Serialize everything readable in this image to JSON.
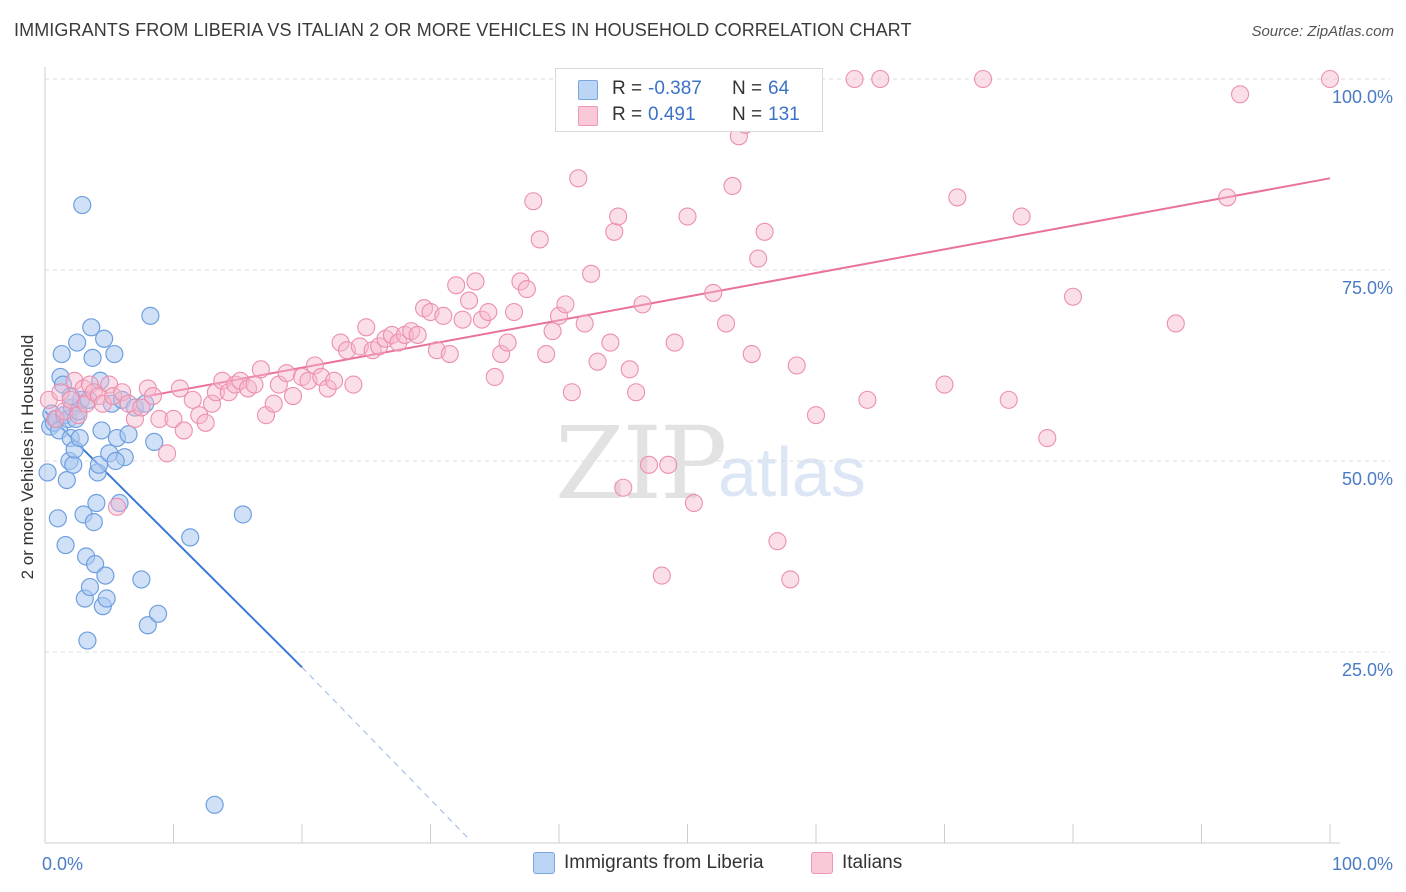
{
  "title": "IMMIGRANTS FROM LIBERIA VS ITALIAN 2 OR MORE VEHICLES IN HOUSEHOLD CORRELATION CHART",
  "source": "Source: ZipAtlas.com",
  "watermark": {
    "zip": "ZIP",
    "atlas": "atlas"
  },
  "legend": {
    "rows": [
      {
        "r_label": "R =",
        "r_value": "-0.387",
        "n_label": "N =",
        "n_value": "64",
        "color": "#a9c8f0"
      },
      {
        "r_label": "R =",
        "r_value": "0.491",
        "n_label": "N =",
        "n_value": "131",
        "color": "#f6b8cc"
      }
    ]
  },
  "bottom_legend": [
    {
      "label": "Immigrants from Liberia",
      "color": "#a9c8f0"
    },
    {
      "label": "Italians",
      "color": "#f6b8cc"
    }
  ],
  "chart_data": {
    "type": "scatter",
    "title": "IMMIGRANTS FROM LIBERIA VS ITALIAN 2 OR MORE VEHICLES IN HOUSEHOLD CORRELATION CHART",
    "xlabel": "",
    "ylabel": "2 or more Vehicles in Household",
    "xlim": [
      0,
      100
    ],
    "ylim": [
      0,
      100
    ],
    "x_tick_labels": [
      "0.0%",
      "100.0%"
    ],
    "y_tick_labels": [
      "25.0%",
      "50.0%",
      "75.0%",
      "100.0%"
    ],
    "y_ticks": [
      25,
      50,
      75,
      100
    ],
    "grid": true,
    "legend_position": "top-center",
    "colors": {
      "liberia": "#6f9fe0",
      "italians": "#ec8fae",
      "liberia_line": "#3a78d8",
      "italians_line": "#e8729a"
    },
    "series": [
      {
        "name": "Immigrants from Liberia",
        "trend": {
          "x": [
            0,
            20.0
          ],
          "y": [
            56.5,
            23.0
          ],
          "dashed_to": [
            33.0,
            0.5
          ]
        },
        "points": [
          [
            0.2,
            48.5
          ],
          [
            0.4,
            54.5
          ],
          [
            0.5,
            56.2
          ],
          [
            0.7,
            55.0
          ],
          [
            0.9,
            55.5
          ],
          [
            1.0,
            42.5
          ],
          [
            1.1,
            54.0
          ],
          [
            1.2,
            61.0
          ],
          [
            1.3,
            64.0
          ],
          [
            1.5,
            56.0
          ],
          [
            1.6,
            39.0
          ],
          [
            1.7,
            47.5
          ],
          [
            1.8,
            55.5
          ],
          [
            1.9,
            50.0
          ],
          [
            2.0,
            53.0
          ],
          [
            2.1,
            57.0
          ],
          [
            2.2,
            49.5
          ],
          [
            2.3,
            51.5
          ],
          [
            2.4,
            55.5
          ],
          [
            2.5,
            65.5
          ],
          [
            2.6,
            56.5
          ],
          [
            2.7,
            53.0
          ],
          [
            2.8,
            58.0
          ],
          [
            2.9,
            83.5
          ],
          [
            3.0,
            43.0
          ],
          [
            3.1,
            32.0
          ],
          [
            3.2,
            37.5
          ],
          [
            3.3,
            26.5
          ],
          [
            3.5,
            33.5
          ],
          [
            3.6,
            67.5
          ],
          [
            3.7,
            63.5
          ],
          [
            3.8,
            42.0
          ],
          [
            3.9,
            36.5
          ],
          [
            4.0,
            44.5
          ],
          [
            4.1,
            48.5
          ],
          [
            4.2,
            49.5
          ],
          [
            4.3,
            60.5
          ],
          [
            4.5,
            31.0
          ],
          [
            4.6,
            66.0
          ],
          [
            4.7,
            35.0
          ],
          [
            4.8,
            32.0
          ],
          [
            5.0,
            51.0
          ],
          [
            5.2,
            57.5
          ],
          [
            5.4,
            64.0
          ],
          [
            5.6,
            53.0
          ],
          [
            5.8,
            44.5
          ],
          [
            6.0,
            58.0
          ],
          [
            6.2,
            50.5
          ],
          [
            6.5,
            53.5
          ],
          [
            7.0,
            57.0
          ],
          [
            7.5,
            34.5
          ],
          [
            7.8,
            57.5
          ],
          [
            8.0,
            28.5
          ],
          [
            8.2,
            69.0
          ],
          [
            8.5,
            52.5
          ],
          [
            8.8,
            30.0
          ],
          [
            11.3,
            40.0
          ],
          [
            13.2,
            5.0
          ],
          [
            15.4,
            43.0
          ],
          [
            1.4,
            60.0
          ],
          [
            2.0,
            58.5
          ],
          [
            3.4,
            58.0
          ],
          [
            4.4,
            54.0
          ],
          [
            5.5,
            50.0
          ]
        ]
      },
      {
        "name": "Italians",
        "trend": {
          "x": [
            8.0,
            100.0
          ],
          "y": [
            58.5,
            87.0
          ]
        },
        "points": [
          [
            0.3,
            58.0
          ],
          [
            0.8,
            55.5
          ],
          [
            1.2,
            59.0
          ],
          [
            1.5,
            56.5
          ],
          [
            2.0,
            58.0
          ],
          [
            2.3,
            60.5
          ],
          [
            2.6,
            56.0
          ],
          [
            3.0,
            59.5
          ],
          [
            3.2,
            57.5
          ],
          [
            3.5,
            60.0
          ],
          [
            3.8,
            59.0
          ],
          [
            4.2,
            58.5
          ],
          [
            4.5,
            57.5
          ],
          [
            5.0,
            60.0
          ],
          [
            5.3,
            58.5
          ],
          [
            5.6,
            44.0
          ],
          [
            6.0,
            59.0
          ],
          [
            6.5,
            57.5
          ],
          [
            7.0,
            55.5
          ],
          [
            7.5,
            57.0
          ],
          [
            8.0,
            59.5
          ],
          [
            8.4,
            58.5
          ],
          [
            8.9,
            55.5
          ],
          [
            9.5,
            51.0
          ],
          [
            10.0,
            55.5
          ],
          [
            10.5,
            59.5
          ],
          [
            10.8,
            54.0
          ],
          [
            11.5,
            58.0
          ],
          [
            12.0,
            56.0
          ],
          [
            12.5,
            55.0
          ],
          [
            13.0,
            57.5
          ],
          [
            13.3,
            59.0
          ],
          [
            13.8,
            60.5
          ],
          [
            14.3,
            59.0
          ],
          [
            14.8,
            60.0
          ],
          [
            15.2,
            60.5
          ],
          [
            15.8,
            59.5
          ],
          [
            16.3,
            60.0
          ],
          [
            16.8,
            62.0
          ],
          [
            17.2,
            56.0
          ],
          [
            17.8,
            57.5
          ],
          [
            18.2,
            60.0
          ],
          [
            18.8,
            61.5
          ],
          [
            19.3,
            58.5
          ],
          [
            20.0,
            61.0
          ],
          [
            20.5,
            60.5
          ],
          [
            21.0,
            62.5
          ],
          [
            21.5,
            61.0
          ],
          [
            22.0,
            59.5
          ],
          [
            22.5,
            60.5
          ],
          [
            23.0,
            65.5
          ],
          [
            23.5,
            64.5
          ],
          [
            24.0,
            60.0
          ],
          [
            24.5,
            65.0
          ],
          [
            25.0,
            67.5
          ],
          [
            25.5,
            64.5
          ],
          [
            26.0,
            65.0
          ],
          [
            26.5,
            66.0
          ],
          [
            27.0,
            66.5
          ],
          [
            27.5,
            65.5
          ],
          [
            28.0,
            66.5
          ],
          [
            28.5,
            67.0
          ],
          [
            29.0,
            66.5
          ],
          [
            29.5,
            70.0
          ],
          [
            30.0,
            69.5
          ],
          [
            30.5,
            64.5
          ],
          [
            31.0,
            69.0
          ],
          [
            31.5,
            64.0
          ],
          [
            32.0,
            73.0
          ],
          [
            32.5,
            68.5
          ],
          [
            33.0,
            71.0
          ],
          [
            33.5,
            73.5
          ],
          [
            34.0,
            68.5
          ],
          [
            34.5,
            69.5
          ],
          [
            35.0,
            61.0
          ],
          [
            35.5,
            64.0
          ],
          [
            36.0,
            65.5
          ],
          [
            36.5,
            69.5
          ],
          [
            37.0,
            73.5
          ],
          [
            37.5,
            72.5
          ],
          [
            38.0,
            84.0
          ],
          [
            38.5,
            79.0
          ],
          [
            39.0,
            64.0
          ],
          [
            39.5,
            67.0
          ],
          [
            40.0,
            69.0
          ],
          [
            40.5,
            70.5
          ],
          [
            41.0,
            59.0
          ],
          [
            41.5,
            87.0
          ],
          [
            42.0,
            68.0
          ],
          [
            42.5,
            74.5
          ],
          [
            43.0,
            63.0
          ],
          [
            44.0,
            65.5
          ],
          [
            44.3,
            80.0
          ],
          [
            44.6,
            82.0
          ],
          [
            45.0,
            46.5
          ],
          [
            45.5,
            62.0
          ],
          [
            46.0,
            59.0
          ],
          [
            46.5,
            70.5
          ],
          [
            47.0,
            49.5
          ],
          [
            48.0,
            35.0
          ],
          [
            48.5,
            49.5
          ],
          [
            49.0,
            65.5
          ],
          [
            50.0,
            82.0
          ],
          [
            50.5,
            44.5
          ],
          [
            51.0,
            100.0
          ],
          [
            52.0,
            72.0
          ],
          [
            53.0,
            68.0
          ],
          [
            53.5,
            86.0
          ],
          [
            54.0,
            92.5
          ],
          [
            54.5,
            94.0
          ],
          [
            55.0,
            64.0
          ],
          [
            55.5,
            76.5
          ],
          [
            56.0,
            80.0
          ],
          [
            57.0,
            39.5
          ],
          [
            58.0,
            34.5
          ],
          [
            58.5,
            62.5
          ],
          [
            60.0,
            56.0
          ],
          [
            63.0,
            100.0
          ],
          [
            64.0,
            58.0
          ],
          [
            65.0,
            100.0
          ],
          [
            70.0,
            60.0
          ],
          [
            71.0,
            84.5
          ],
          [
            73.0,
            100.0
          ],
          [
            75.0,
            58.0
          ],
          [
            76.0,
            82.0
          ],
          [
            78.0,
            53.0
          ],
          [
            80.0,
            71.5
          ],
          [
            88.0,
            68.0
          ],
          [
            92.0,
            84.5
          ],
          [
            100.0,
            100.0
          ],
          [
            93.0,
            98.0
          ]
        ]
      }
    ]
  }
}
